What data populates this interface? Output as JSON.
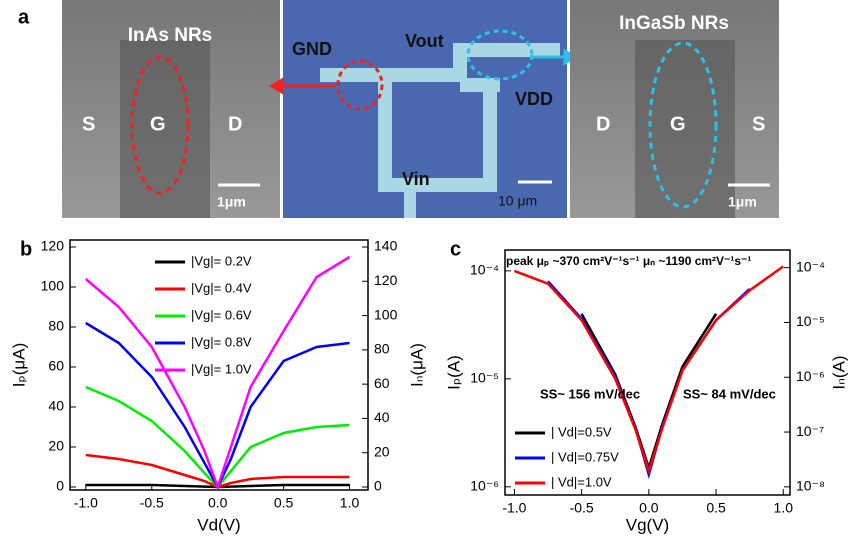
{
  "panel_a": {
    "label": "a",
    "left": {
      "title": "InAs NRs",
      "s": "S",
      "g": "G",
      "d": "D",
      "scale": "1μm"
    },
    "middle": {
      "gnd": "GND",
      "vout": "Vout",
      "vdd": "VDD",
      "vin": "Vin",
      "scale": "10 μm"
    },
    "right": {
      "title": "InGaSb NRs",
      "d": "D",
      "g": "G",
      "s": "S",
      "scale": "1μm"
    }
  },
  "chart_data": [
    {
      "type": "line",
      "panel_label": "b",
      "xlabel": "Vd(V)",
      "ylabel": "Iₚ(μA)",
      "y2label": "Iₙ(μA)",
      "xlim": [
        -1.12,
        1.14
      ],
      "xticks": [
        {
          "value": -1,
          "label": "-1.0"
        },
        {
          "value": -0.5,
          "label": "-0.5"
        },
        {
          "value": 0,
          "label": "0.0"
        },
        {
          "value": 0.5,
          "label": "0.5"
        },
        {
          "value": 1,
          "label": "1.0"
        }
      ],
      "ylim": [
        -1.5,
        123.5
      ],
      "yticks": [
        0,
        20,
        40,
        60,
        80,
        100,
        120
      ],
      "y2lim": [
        -1.75,
        144.1
      ],
      "y2ticks": [
        0,
        20,
        40,
        60,
        80,
        100,
        120,
        140
      ],
      "log_y": false,
      "legend": "upper left",
      "series": [
        {
          "name": "|Vg|= 0.2V",
          "color": "#000000",
          "x": [
            -1,
            -0.75,
            -0.5,
            -0.25,
            -0.1,
            0,
            0.1,
            0.25,
            0.5,
            0.75,
            1
          ],
          "values": [
            1,
            1,
            1,
            0.5,
            0.2,
            0,
            0.2,
            0.5,
            1,
            1,
            1
          ]
        },
        {
          "name": "|Vg|= 0.4V",
          "color": "#ff0000",
          "x": [
            -1,
            -0.75,
            -0.5,
            -0.25,
            -0.1,
            0,
            0.1,
            0.25,
            0.5,
            0.75,
            1
          ],
          "values": [
            16,
            14,
            11,
            6,
            3,
            0,
            2,
            4,
            5,
            5,
            5
          ]
        },
        {
          "name": "|Vg|= 0.6V",
          "color": "#00ee00",
          "x": [
            -1,
            -0.75,
            -0.5,
            -0.25,
            -0.1,
            0,
            0.1,
            0.25,
            0.5,
            0.75,
            1
          ],
          "values": [
            50,
            43,
            33,
            18,
            7,
            0,
            8,
            20,
            27,
            30,
            31
          ]
        },
        {
          "name": "|Vg|= 0.8V",
          "color": "#0000ff",
          "x": [
            -1,
            -0.75,
            -0.5,
            -0.25,
            -0.1,
            0,
            0.1,
            0.25,
            0.5,
            0.75,
            1
          ],
          "values": [
            82,
            72,
            55,
            30,
            12,
            0,
            14,
            40,
            63,
            70,
            72
          ]
        },
        {
          "name": "|Vg|= 1.0V",
          "color": "#ff00ff",
          "x": [
            -1,
            -0.75,
            -0.5,
            -0.25,
            -0.1,
            0,
            0.1,
            0.25,
            0.5,
            0.75,
            1
          ],
          "values": [
            104,
            90,
            70,
            40,
            18,
            0,
            20,
            50,
            78,
            105,
            115
          ]
        }
      ]
    },
    {
      "type": "line",
      "panel_label": "c",
      "xlabel": "Vg(V)",
      "ylabel": "Iₚ(A)",
      "y2label": "Iₙ(A)",
      "xlim": [
        -1.07,
        1.05
      ],
      "xticks": [
        {
          "value": -1,
          "label": "-1.0"
        },
        {
          "value": -0.5,
          "label": "-0.5"
        },
        {
          "value": 0,
          "label": "0.0"
        },
        {
          "value": 0.5,
          "label": "0.5"
        },
        {
          "value": 1,
          "label": "1.0"
        }
      ],
      "ylim": [
        8.4e-07,
        0.000156
      ],
      "yticks": [
        {
          "value": 1e-06,
          "label": "10⁻⁶"
        },
        {
          "value": 1e-05,
          "label": "10⁻⁵"
        },
        {
          "value": 0.0001,
          "label": "10⁻⁴"
        }
      ],
      "y2lim": [
        7.1e-09,
        0.00021
      ],
      "y2ticks": [
        {
          "value": 1e-08,
          "label": "10⁻⁸"
        },
        {
          "value": 1e-07,
          "label": "10⁻⁷"
        },
        {
          "value": 1e-06,
          "label": "10⁻⁶"
        },
        {
          "value": 1e-05,
          "label": "10⁻⁵"
        },
        {
          "value": 0.0001,
          "label": "10⁻⁴"
        }
      ],
      "log_y": true,
      "legend": "lower left",
      "annotations": [
        "peak μₚ ~370 cm²V⁻¹s⁻¹   μₙ ~1190 cm²V⁻¹s⁻¹",
        "SS~ 156 mV/dec",
        "SS~ 84 mV/dec"
      ],
      "series": [
        {
          "name": "| Vd|=0.5V",
          "color": "#000000",
          "x": [
            -0.5,
            -0.25,
            -0.1,
            0,
            0.1,
            0.25,
            0.5
          ],
          "values": [
            4e-05,
            1.1e-05,
            3.6e-06,
            1.5e-06,
            3.8e-06,
            1.3e-05,
            4e-05
          ]
        },
        {
          "name": "| Vd|=0.75V",
          "color": "#0000ff",
          "x": [
            -0.75,
            -0.5,
            -0.25,
            -0.1,
            0,
            0.1,
            0.25,
            0.5,
            0.75
          ],
          "values": [
            8e-05,
            3.6e-05,
            1.05e-05,
            3.5e-06,
            1.3e-06,
            3.6e-06,
            1.2e-05,
            3.5e-05,
            6.8e-05
          ]
        },
        {
          "name": "| Vd|=1.0V",
          "color": "#ff0000",
          "x": [
            -1,
            -0.75,
            -0.5,
            -0.25,
            -0.1,
            0,
            0.1,
            0.25,
            0.5,
            0.75,
            1
          ],
          "values": [
            0.0001,
            7.6e-05,
            3.5e-05,
            1e-05,
            3.4e-06,
            1.4e-06,
            3.5e-06,
            1.2e-05,
            3.5e-05,
            6.6e-05,
            0.00011
          ]
        }
      ]
    }
  ]
}
